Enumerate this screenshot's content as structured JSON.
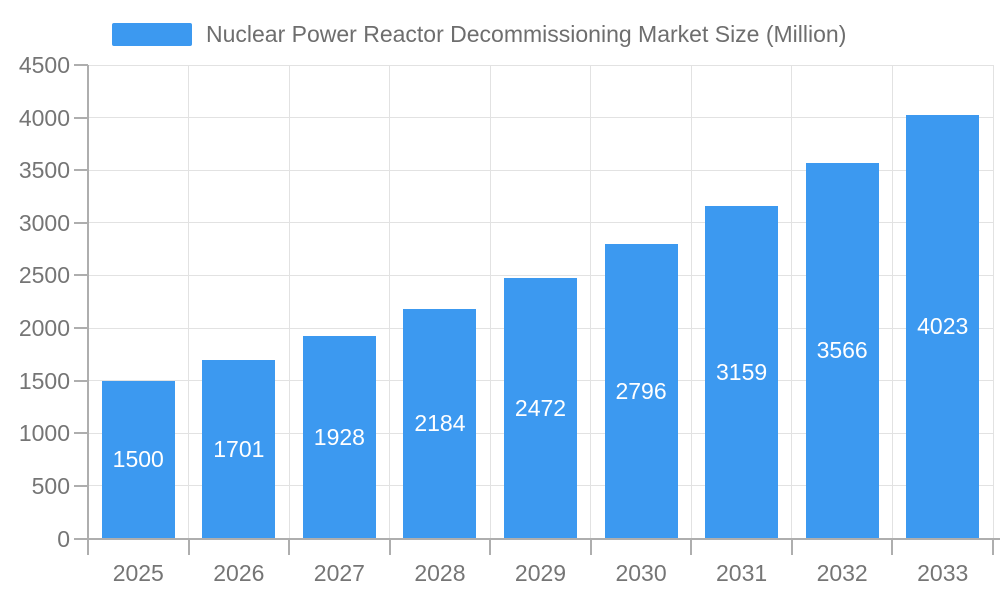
{
  "legend": {
    "label": "Nuclear Power Reactor Decommissioning Market Size (Million)",
    "swatch_color": "#3c99f0"
  },
  "chart_data": {
    "type": "bar",
    "title": "Nuclear Power Reactor Decommissioning Market Size (Million)",
    "categories": [
      "2025",
      "2026",
      "2027",
      "2028",
      "2029",
      "2030",
      "2031",
      "2032",
      "2033"
    ],
    "values": [
      1500,
      1701,
      1928,
      2184,
      2472,
      2796,
      3159,
      3566,
      4023
    ],
    "xlabel": "",
    "ylabel": "",
    "ylim": [
      0,
      4500
    ],
    "ytick_step": 500,
    "ytick_labels": [
      "0",
      "500",
      "1000",
      "1500",
      "2000",
      "2500",
      "3000",
      "3500",
      "4000",
      "4500"
    ],
    "grid": true,
    "legend_position": "top",
    "bar_label_position": "inside-center"
  },
  "colors": {
    "background": "#ffffff",
    "bar": "#3c99f0",
    "bar_label": "#ffffff",
    "grid": "#e2e2e2",
    "axis": "#aeaeae",
    "axis_text": "#757575",
    "legend_text": "#6e6e6e"
  }
}
